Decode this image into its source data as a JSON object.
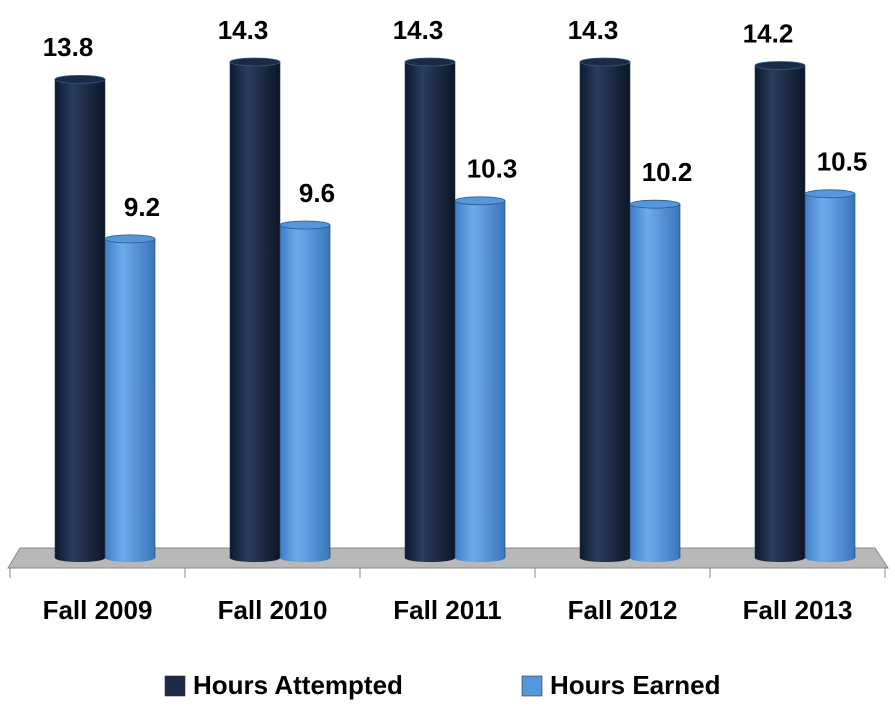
{
  "chart_data": {
    "type": "bar",
    "categories": [
      "Fall 2009",
      "Fall 2010",
      "Fall 2011",
      "Fall 2012",
      "Fall 2013"
    ],
    "series": [
      {
        "name": "Hours Attempted",
        "color": "#1b2b47",
        "values": [
          13.8,
          14.3,
          14.3,
          14.3,
          14.2
        ]
      },
      {
        "name": "Hours Earned",
        "color": "#5596dd",
        "values": [
          9.2,
          9.6,
          10.3,
          10.2,
          10.5
        ]
      }
    ],
    "legend": "bottom"
  }
}
